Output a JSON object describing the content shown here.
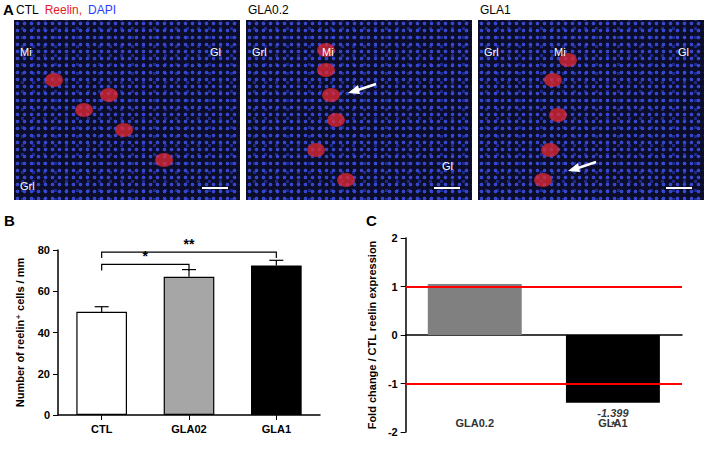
{
  "panels": [
    "A",
    "B",
    "C"
  ],
  "images": [
    {
      "title": "CTL",
      "stain": [
        {
          "text": "Reelin,",
          "color": "#e8202a"
        },
        {
          "text": "DAPI",
          "color": "#2b3cff"
        }
      ],
      "labels": [
        "Mi",
        "Gl",
        "Grl"
      ]
    },
    {
      "title": "GLA0.2",
      "labels": [
        "Grl",
        "Mi",
        "Gl"
      ]
    },
    {
      "title": "GLA1",
      "labels": [
        "Grl",
        "Mi",
        "Gl"
      ]
    }
  ],
  "chart_data": [
    {
      "type": "bar",
      "ylabel": "Number of reelin⁺ cells / mm",
      "categories": [
        "CTL",
        "GLA02",
        "GLA1"
      ],
      "values": [
        50,
        67,
        72.5
      ],
      "errors": [
        2.5,
        3.5,
        2.5
      ],
      "colors": [
        "#ffffff",
        "#a6a6a6",
        "#000000"
      ],
      "ylim": [
        0,
        80
      ],
      "yticks": [
        0,
        20,
        40,
        60,
        80
      ],
      "grid": false,
      "annotations": [
        {
          "text": "*",
          "from": "CTL",
          "to": "GLA02",
          "y": 73
        },
        {
          "text": "**",
          "from": "CTL",
          "to": "GLA1",
          "y": 79
        }
      ]
    },
    {
      "type": "bar",
      "ylabel": "Fold change / CTL reelin expression",
      "categories": [
        "GLA0.2",
        "GLA1"
      ],
      "values": [
        1.05,
        -1.399
      ],
      "colors": [
        "#808080",
        "#000000"
      ],
      "ylim": [
        -2,
        2
      ],
      "yticks": [
        -2,
        -1,
        0,
        1,
        2
      ],
      "grid": false,
      "reference_lines": {
        "values": [
          1,
          -1
        ],
        "color": "#ff0000"
      },
      "annotations": [
        {
          "text": "-1.399",
          "category": "GLA1",
          "y": -1.6
        },
        {
          "text": "*",
          "category": "GLA1",
          "y": -1.85
        }
      ]
    }
  ]
}
